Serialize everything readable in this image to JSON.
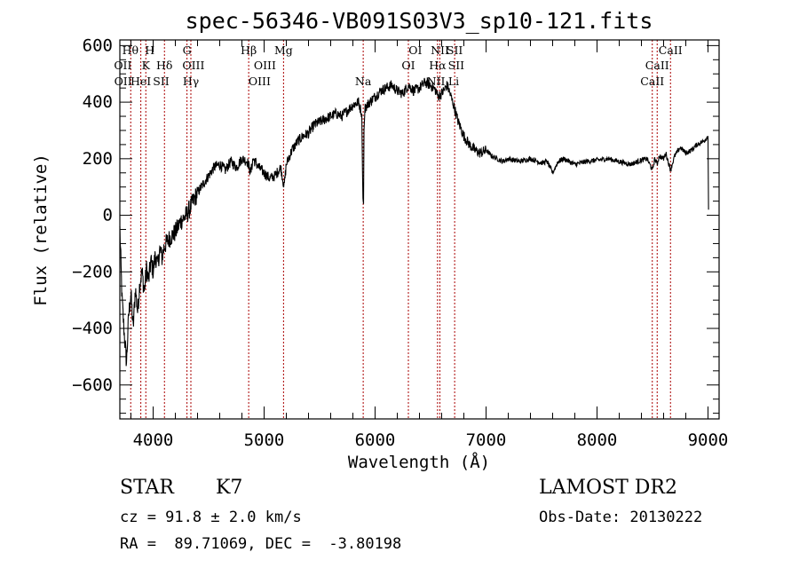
{
  "chart_data": {
    "type": "line",
    "title": "spec-56346-VB091S03V3_sp10-121.fits",
    "xlabel": "Wavelength (Å)",
    "ylabel": "Flux (relative)",
    "xlim": [
      3700,
      9100
    ],
    "ylim": [
      -720,
      620
    ],
    "xticks": [
      4000,
      5000,
      6000,
      7000,
      8000,
      9000
    ],
    "yticks": [
      -600,
      -400,
      -200,
      0,
      200,
      400,
      600
    ],
    "grid": false,
    "series": [
      {
        "x": [
          3700,
          3720,
          3740,
          3760,
          3780,
          3800,
          3820,
          3840,
          3860,
          3880,
          3900,
          3920,
          3940,
          3960,
          3980,
          4000,
          4020,
          4040,
          4060,
          4080,
          4100,
          4150,
          4200,
          4250,
          4300,
          4350,
          4400,
          4450,
          4500,
          4550,
          4600,
          4650,
          4700,
          4750,
          4800,
          4850,
          4880,
          4900,
          4950,
          5000,
          5050,
          5100,
          5150,
          5180,
          5200,
          5250,
          5300,
          5350,
          5400,
          5450,
          5500,
          5550,
          5600,
          5650,
          5700,
          5750,
          5800,
          5850,
          5880,
          5890,
          5896,
          5900,
          5910,
          5950,
          6000,
          6050,
          6100,
          6150,
          6200,
          6250,
          6300,
          6350,
          6400,
          6450,
          6500,
          6550,
          6563,
          6600,
          6650,
          6700,
          6750,
          6800,
          6850,
          6900,
          6950,
          7000,
          7050,
          7100,
          7150,
          7200,
          7300,
          7400,
          7500,
          7550,
          7600,
          7650,
          7700,
          7800,
          7900,
          8000,
          8100,
          8200,
          8300,
          8400,
          8450,
          8500,
          8520,
          8542,
          8560,
          8600,
          8620,
          8662,
          8700,
          8750,
          8800,
          8850,
          8900,
          8950,
          8980,
          9000,
          9005
        ],
        "y": [
          -50,
          -300,
          -420,
          -520,
          -350,
          -280,
          -400,
          -260,
          -340,
          -240,
          -200,
          -270,
          -190,
          -230,
          -160,
          -200,
          -140,
          -180,
          -120,
          -150,
          -110,
          -80,
          -60,
          -20,
          0,
          40,
          80,
          110,
          140,
          170,
          180,
          160,
          190,
          170,
          200,
          190,
          150,
          200,
          170,
          150,
          130,
          140,
          170,
          100,
          180,
          230,
          260,
          280,
          290,
          320,
          330,
          340,
          350,
          360,
          350,
          370,
          390,
          400,
          360,
          60,
          40,
          300,
          380,
          400,
          420,
          440,
          450,
          460,
          440,
          430,
          460,
          440,
          450,
          470,
          460,
          440,
          420,
          430,
          460,
          400,
          330,
          280,
          250,
          230,
          220,
          230,
          210,
          200,
          190,
          200,
          190,
          200,
          185,
          190,
          150,
          190,
          200,
          180,
          190,
          195,
          200,
          190,
          180,
          195,
          200,
          160,
          200,
          180,
          210,
          200,
          220,
          160,
          210,
          240,
          220,
          230,
          250,
          260,
          270,
          280,
          20
        ]
      }
    ],
    "spectral_lines": [
      {
        "label": "Hθ",
        "x": 3798
      },
      {
        "label": "H",
        "x": 3889
      },
      {
        "label": "K",
        "x": 3934
      },
      {
        "label": "Hδ",
        "x": 4102
      },
      {
        "label": "G",
        "x": 4305
      },
      {
        "label": "Hγ",
        "x": 4340
      },
      {
        "label": "Hβ",
        "x": 4861
      },
      {
        "label": "Mg",
        "x": 5175
      },
      {
        "label": "Na",
        "x": 5893
      },
      {
        "label": "OI",
        "x": 6300
      },
      {
        "label": "Hα",
        "x": 6563
      },
      {
        "label": "NII",
        "x": 6584
      },
      {
        "label": "SII",
        "x": 6717
      },
      {
        "label": "CaII",
        "x": 8498
      },
      {
        "label": "CaII",
        "x": 8542
      },
      {
        "label": "CaII",
        "x": 8662
      }
    ],
    "line_labels": [
      {
        "text": "Hθ",
        "x": 3795,
        "row": 0
      },
      {
        "text": "OII",
        "x": 3727,
        "row": 1
      },
      {
        "text": "OII",
        "x": 3729,
        "row": 2
      },
      {
        "text": "H",
        "x": 3970,
        "row": 0
      },
      {
        "text": "K",
        "x": 3934,
        "row": 1
      },
      {
        "text": "HeI",
        "x": 3889,
        "row": 2
      },
      {
        "text": "Hδ",
        "x": 4102,
        "row": 1
      },
      {
        "text": "SII",
        "x": 4072,
        "row": 2
      },
      {
        "text": "G",
        "x": 4305,
        "row": 0
      },
      {
        "text": "OIII",
        "x": 4363,
        "row": 1
      },
      {
        "text": "Hγ",
        "x": 4340,
        "row": 2
      },
      {
        "text": "Hβ",
        "x": 4861,
        "row": 0
      },
      {
        "text": "OIII",
        "x": 5007,
        "row": 1
      },
      {
        "text": "OIII",
        "x": 4959,
        "row": 2
      },
      {
        "text": "Mg",
        "x": 5175,
        "row": 0
      },
      {
        "text": "Na",
        "x": 5893,
        "row": 2
      },
      {
        "text": "OI",
        "x": 6363,
        "row": 0
      },
      {
        "text": "OI",
        "x": 6300,
        "row": 1
      },
      {
        "text": "NII",
        "x": 6584,
        "row": 0
      },
      {
        "text": "SII",
        "x": 6717,
        "row": 0
      },
      {
        "text": "Hα",
        "x": 6563,
        "row": 1
      },
      {
        "text": "SII",
        "x": 6731,
        "row": 1
      },
      {
        "text": "NII",
        "x": 6548,
        "row": 2
      },
      {
        "text": "Li",
        "x": 6708,
        "row": 2
      },
      {
        "text": "CaII",
        "x": 8662,
        "row": 0
      },
      {
        "text": "CaII",
        "x": 8542,
        "row": 1
      },
      {
        "text": "CaII",
        "x": 8498,
        "row": 2
      }
    ],
    "line_color": "#aa0000"
  },
  "info": {
    "class": "STAR",
    "subclass": "K7",
    "survey": "LAMOST DR2",
    "cz": "cz = 91.8 ± 2.0 km/s",
    "obs_date": "Obs-Date: 20130222",
    "radec": "RA =  89.71069, DEC =  -3.80198"
  }
}
